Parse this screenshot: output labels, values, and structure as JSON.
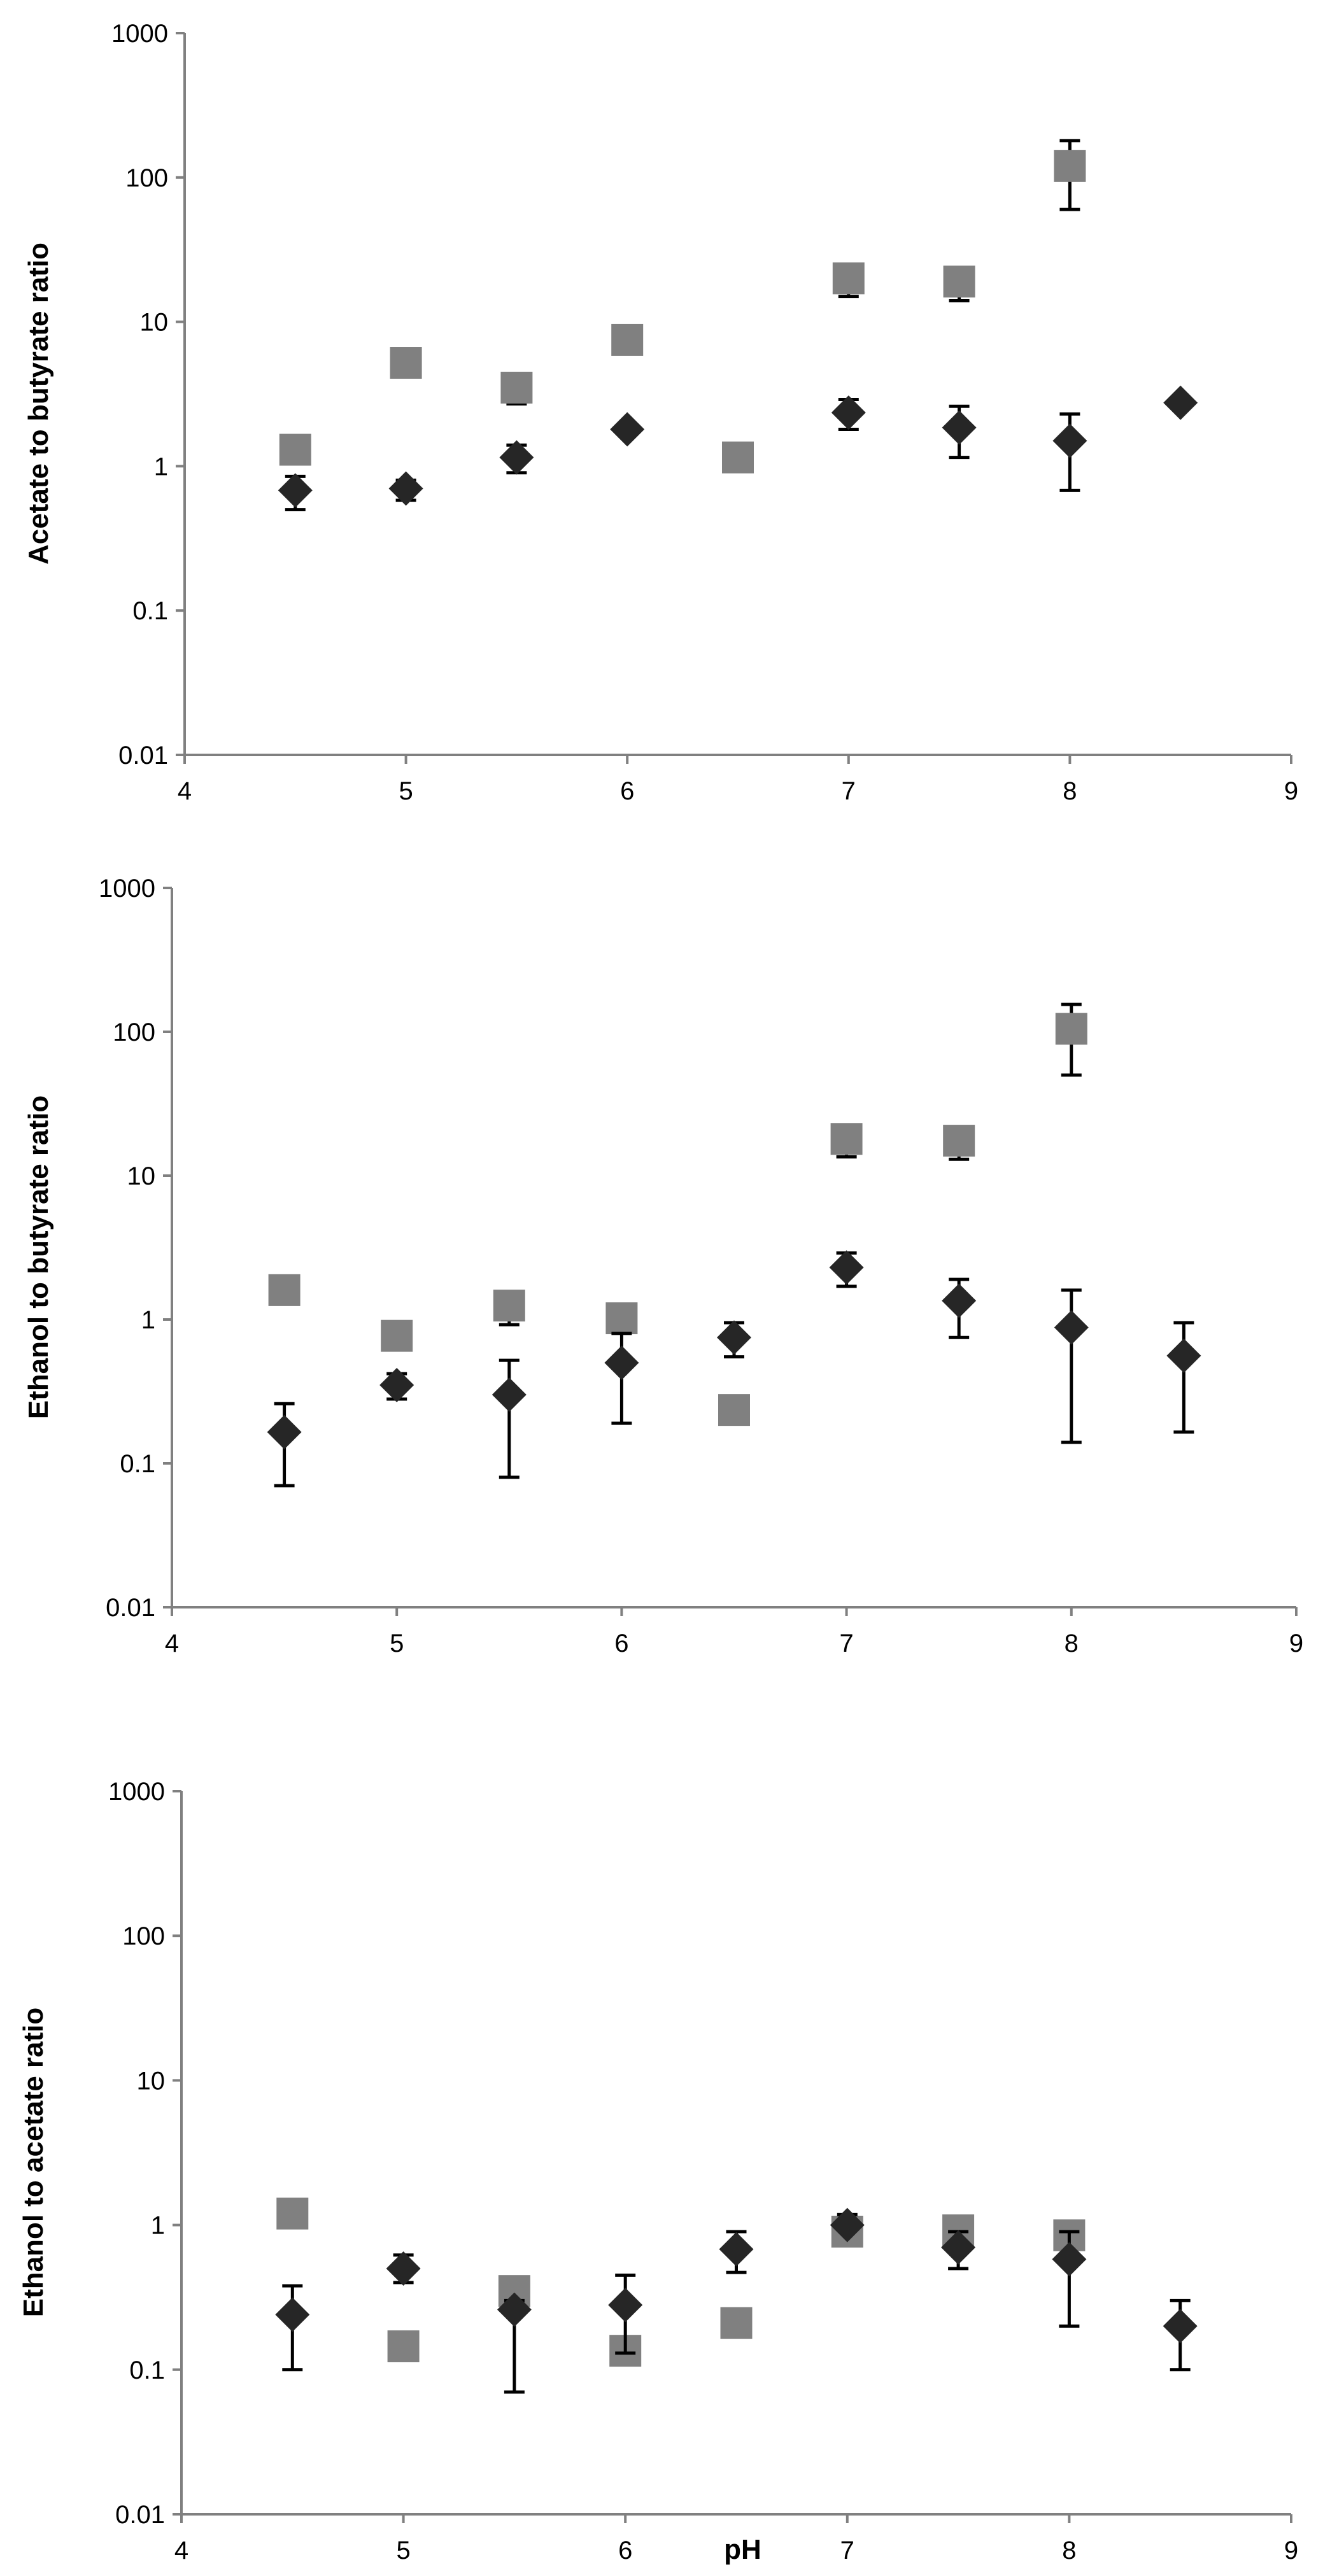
{
  "chart_data": [
    {
      "type": "scatter",
      "title": "",
      "xlabel": "",
      "ylabel": "Acetate to butyrate ratio",
      "xlim": [
        4,
        9
      ],
      "ylim": [
        0.01,
        1000
      ],
      "yscale": "log",
      "grid": false,
      "x_ticks": [
        "4",
        "5",
        "6",
        "7",
        "8",
        "9"
      ],
      "y_ticks": [
        "0.01",
        "0.1",
        "1",
        "10",
        "100",
        "1000"
      ],
      "series": [
        {
          "marker": "diamond",
          "color": "#262626",
          "points": [
            {
              "x": 4.5,
              "y": 0.68,
              "err_low": 0.5,
              "err_high": 0.85
            },
            {
              "x": 5.0,
              "y": 0.7,
              "err_low": 0.58,
              "err_high": 0.8
            },
            {
              "x": 5.5,
              "y": 1.15,
              "err_low": 0.9,
              "err_high": 1.4
            },
            {
              "x": 6.0,
              "y": 1.8
            },
            {
              "x": 7.0,
              "y": 2.35,
              "err_low": 1.8,
              "err_high": 2.9
            },
            {
              "x": 7.5,
              "y": 1.85,
              "err_low": 1.15,
              "err_high": 2.6
            },
            {
              "x": 8.0,
              "y": 1.5,
              "err_low": 0.68,
              "err_high": 2.3
            },
            {
              "x": 8.5,
              "y": 2.75
            }
          ]
        },
        {
          "marker": "square",
          "color": "#808080",
          "points": [
            {
              "x": 4.5,
              "y": 1.3
            },
            {
              "x": 5.0,
              "y": 5.2
            },
            {
              "x": 5.5,
              "y": 3.5,
              "err_low": 2.7,
              "err_high": 3.5
            },
            {
              "x": 6.0,
              "y": 7.5
            },
            {
              "x": 6.5,
              "y": 1.15,
              "err_low": 0.95,
              "err_high": 1.15
            },
            {
              "x": 7.0,
              "y": 20,
              "err_low": 15,
              "err_high": 20
            },
            {
              "x": 7.5,
              "y": 19,
              "err_low": 14,
              "err_high": 19
            },
            {
              "x": 8.0,
              "y": 120,
              "err_low": 60,
              "err_high": 180
            }
          ]
        }
      ]
    },
    {
      "type": "scatter",
      "title": "",
      "xlabel": "",
      "ylabel": "Ethanol to butyrate ratio",
      "xlim": [
        4,
        9
      ],
      "ylim": [
        0.01,
        1000
      ],
      "yscale": "log",
      "grid": false,
      "x_ticks": [
        "4",
        "5",
        "6",
        "7",
        "8",
        "9"
      ],
      "y_ticks": [
        "0.01",
        "0.1",
        "1",
        "10",
        "100",
        "1000"
      ],
      "series": [
        {
          "marker": "diamond",
          "color": "#262626",
          "points": [
            {
              "x": 4.5,
              "y": 0.165,
              "err_low": 0.07,
              "err_high": 0.26
            },
            {
              "x": 5.0,
              "y": 0.35,
              "err_low": 0.28,
              "err_high": 0.42
            },
            {
              "x": 5.5,
              "y": 0.3,
              "err_low": 0.08,
              "err_high": 0.52
            },
            {
              "x": 6.0,
              "y": 0.5,
              "err_low": 0.19,
              "err_high": 0.8
            },
            {
              "x": 6.5,
              "y": 0.75,
              "err_low": 0.55,
              "err_high": 0.95
            },
            {
              "x": 7.0,
              "y": 2.3,
              "err_low": 1.7,
              "err_high": 2.9
            },
            {
              "x": 7.5,
              "y": 1.35,
              "err_low": 0.75,
              "err_high": 1.9
            },
            {
              "x": 8.0,
              "y": 0.88,
              "err_low": 0.14,
              "err_high": 1.6
            },
            {
              "x": 8.5,
              "y": 0.56,
              "err_low": 0.165,
              "err_high": 0.95
            }
          ]
        },
        {
          "marker": "square",
          "color": "#808080",
          "points": [
            {
              "x": 4.5,
              "y": 1.6
            },
            {
              "x": 5.0,
              "y": 0.77
            },
            {
              "x": 5.5,
              "y": 1.25,
              "err_low": 0.92,
              "err_high": 1.25
            },
            {
              "x": 6.0,
              "y": 1.02
            },
            {
              "x": 6.5,
              "y": 0.235
            },
            {
              "x": 7.0,
              "y": 18,
              "err_low": 13.5,
              "err_high": 18
            },
            {
              "x": 7.5,
              "y": 17.5,
              "err_low": 13,
              "err_high": 17.5
            },
            {
              "x": 8.0,
              "y": 105,
              "err_low": 50,
              "err_high": 155
            }
          ]
        }
      ]
    },
    {
      "type": "scatter",
      "title": "",
      "xlabel": "pH",
      "ylabel": "Ethanol to acetate ratio",
      "xlim": [
        4,
        9
      ],
      "ylim": [
        0.01,
        1000
      ],
      "yscale": "log",
      "grid": false,
      "x_ticks": [
        "4",
        "5",
        "6",
        "7",
        "8",
        "9"
      ],
      "y_ticks": [
        "0.01",
        "0.1",
        "1",
        "10",
        "100",
        "1000"
      ],
      "series": [
        {
          "marker": "diamond",
          "color": "#262626",
          "points": [
            {
              "x": 4.5,
              "y": 0.24,
              "err_low": 0.1,
              "err_high": 0.38
            },
            {
              "x": 5.0,
              "y": 0.5,
              "err_low": 0.4,
              "err_high": 0.62
            },
            {
              "x": 5.5,
              "y": 0.26,
              "err_low": 0.07,
              "err_high": 0.3
            },
            {
              "x": 6.0,
              "y": 0.28,
              "err_low": 0.13,
              "err_high": 0.45
            },
            {
              "x": 6.5,
              "y": 0.68,
              "err_low": 0.47,
              "err_high": 0.9
            },
            {
              "x": 7.0,
              "y": 1.0,
              "err_low": 1.0,
              "err_high": 1.18
            },
            {
              "x": 7.5,
              "y": 0.7,
              "err_low": 0.5,
              "err_high": 0.9
            },
            {
              "x": 8.0,
              "y": 0.58,
              "err_low": 0.2,
              "err_high": 0.9
            },
            {
              "x": 8.5,
              "y": 0.2,
              "err_low": 0.1,
              "err_high": 0.3
            }
          ]
        },
        {
          "marker": "square",
          "color": "#808080",
          "points": [
            {
              "x": 4.5,
              "y": 1.2
            },
            {
              "x": 5.0,
              "y": 0.145
            },
            {
              "x": 5.5,
              "y": 0.35
            },
            {
              "x": 6.0,
              "y": 0.135
            },
            {
              "x": 6.5,
              "y": 0.21
            },
            {
              "x": 7.0,
              "y": 0.9
            },
            {
              "x": 7.5,
              "y": 0.92
            },
            {
              "x": 8.0,
              "y": 0.85
            }
          ]
        }
      ]
    }
  ]
}
